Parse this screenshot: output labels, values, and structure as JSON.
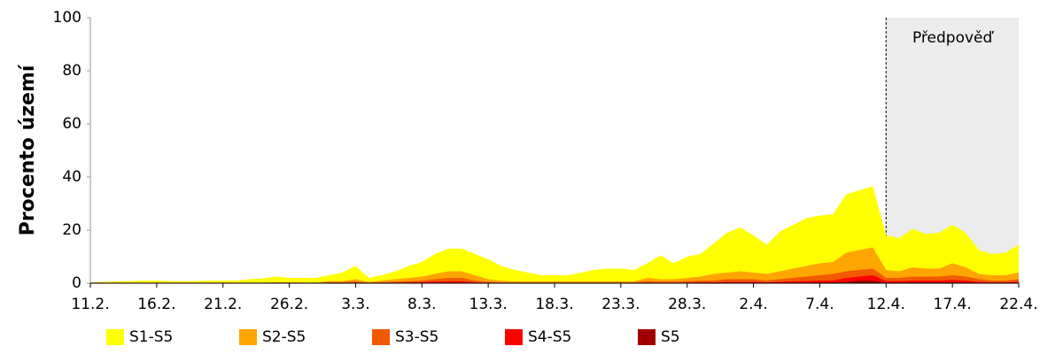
{
  "chart_data": {
    "type": "area",
    "y_label": "Procento území",
    "categories": [
      "11.2.",
      null,
      null,
      null,
      null,
      "16.2.",
      null,
      null,
      null,
      null,
      "21.2.",
      null,
      null,
      null,
      null,
      "26.2.",
      null,
      null,
      null,
      null,
      "3.3.",
      null,
      null,
      null,
      null,
      "8.3.",
      null,
      null,
      null,
      null,
      "13.3.",
      null,
      null,
      null,
      null,
      "18.3.",
      null,
      null,
      null,
      null,
      "23.3.",
      null,
      null,
      null,
      null,
      "28.3.",
      null,
      null,
      null,
      null,
      "2.4.",
      null,
      null,
      null,
      null,
      "7.4.",
      null,
      null,
      null,
      null,
      "12.4.",
      null,
      null,
      null,
      null,
      "17.4.",
      null,
      null,
      null,
      null,
      "22.4."
    ],
    "series": [
      {
        "name": "S1-S5",
        "color": "#ffff00",
        "values": [
          0.3,
          0.5,
          0.7,
          0.8,
          1,
          1,
          0.8,
          0.8,
          0.8,
          1,
          1,
          1,
          1.5,
          1.8,
          2.5,
          2,
          2,
          2,
          3,
          4,
          6.5,
          2,
          3,
          4.5,
          6.5,
          8,
          11,
          13,
          13,
          11,
          9,
          6.5,
          5,
          4,
          3,
          3,
          3,
          4,
          5,
          5.5,
          5.5,
          5,
          7.5,
          10.5,
          7.5,
          10,
          11,
          15,
          19,
          21,
          18,
          14.5,
          19.5,
          22,
          24.5,
          25.5,
          26,
          33.5,
          35,
          36.5,
          18,
          17,
          20.5,
          18.5,
          19,
          22,
          19,
          12.5,
          11,
          11.5,
          14.5
        ]
      },
      {
        "name": "S2-S5",
        "color": "#ffa500",
        "values": [
          0.3,
          0.3,
          0.3,
          0.3,
          0.3,
          0.3,
          0.3,
          0.3,
          0.3,
          0.3,
          0.3,
          0.3,
          0.3,
          0.3,
          0.4,
          0.4,
          0.3,
          0.3,
          0.8,
          0.8,
          1.5,
          0.5,
          1,
          1.5,
          2,
          2.5,
          3.5,
          4.5,
          4.5,
          3,
          1.5,
          1,
          0.7,
          0.7,
          0.7,
          0.7,
          0.7,
          0.7,
          0.7,
          0.7,
          0.7,
          0.7,
          2,
          1.5,
          1.5,
          2,
          2.5,
          3.5,
          4,
          4.5,
          4,
          3.5,
          4.5,
          5.5,
          6.5,
          7.5,
          8,
          11.5,
          12.5,
          13.5,
          5,
          4.5,
          6,
          5.5,
          5.5,
          7.5,
          6,
          3.5,
          3,
          3,
          4
        ]
      },
      {
        "name": "S3-S5",
        "color": "#f05a00",
        "values": [
          0.1,
          0.1,
          0.1,
          0.1,
          0.1,
          0.1,
          0.1,
          0.1,
          0.1,
          0.1,
          0.1,
          0.1,
          0.1,
          0.1,
          0.2,
          0.2,
          0.1,
          0.1,
          0.4,
          0.4,
          0.7,
          0.2,
          0.4,
          0.6,
          0.8,
          1,
          1.5,
          2,
          2,
          1,
          0.5,
          0.3,
          0.3,
          0.3,
          0.3,
          0.3,
          0.3,
          0.3,
          0.3,
          0.3,
          0.3,
          0.3,
          0.8,
          0.6,
          0.6,
          0.8,
          1,
          1,
          1.5,
          1.5,
          1.5,
          1,
          1.5,
          2,
          2.5,
          3,
          3.5,
          4.5,
          5,
          5.5,
          2,
          2,
          2.5,
          2.5,
          2.5,
          3,
          2.5,
          1.5,
          1,
          1,
          1.5
        ]
      },
      {
        "name": "S4-S5",
        "color": "#ff0000",
        "values": [
          0,
          0,
          0,
          0,
          0,
          0,
          0,
          0,
          0,
          0,
          0,
          0,
          0,
          0,
          0,
          0,
          0,
          0,
          0,
          0,
          0.2,
          0,
          0.1,
          0.2,
          0.3,
          0.4,
          0.5,
          0.7,
          0.7,
          0.3,
          0.1,
          0,
          0,
          0,
          0,
          0,
          0,
          0,
          0,
          0,
          0,
          0,
          0.2,
          0.1,
          0.1,
          0.2,
          0.3,
          0.3,
          0.5,
          0.5,
          0.5,
          0.3,
          0.5,
          0.7,
          0.8,
          1,
          1,
          2,
          2.5,
          3,
          0.8,
          0.8,
          1,
          1,
          1,
          1.2,
          1,
          0.5,
          0.3,
          0.3,
          0.5
        ]
      },
      {
        "name": "S5",
        "color": "#a00000",
        "values": [
          0,
          0,
          0,
          0,
          0,
          0,
          0,
          0,
          0,
          0,
          0,
          0,
          0,
          0,
          0,
          0,
          0,
          0,
          0,
          0,
          0,
          0,
          0,
          0,
          0,
          0,
          0,
          0,
          0,
          0,
          0,
          0,
          0,
          0,
          0,
          0,
          0,
          0,
          0,
          0,
          0,
          0,
          0,
          0,
          0,
          0,
          0,
          0,
          0,
          0,
          0,
          0,
          0,
          0.1,
          0.2,
          0.2,
          0.3,
          0.5,
          1,
          1,
          0.2,
          0.2,
          0.3,
          0.3,
          0.3,
          0.3,
          0.3,
          0.1,
          0,
          0,
          0.1
        ]
      }
    ],
    "ylim": [
      0,
      100
    ],
    "yticks": [
      0,
      20,
      40,
      60,
      80,
      100
    ],
    "annotation": {
      "text": "Předpověď",
      "from": "12.4."
    },
    "legend": "bottom"
  }
}
